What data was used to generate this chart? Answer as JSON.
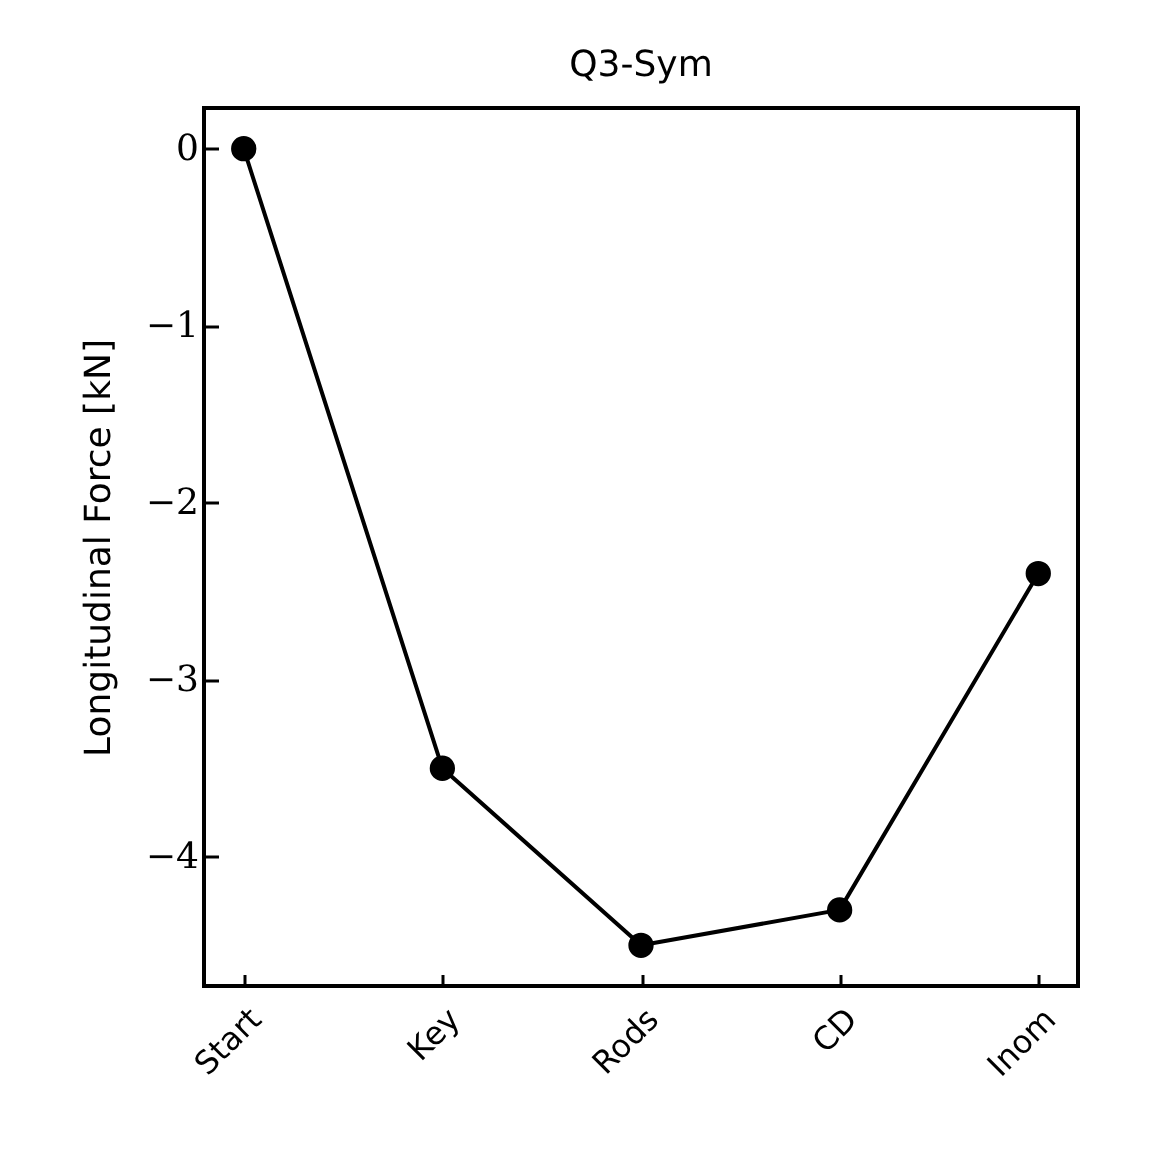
{
  "chart_data": {
    "type": "line",
    "title": "Q3-Sym",
    "ylabel": "Longitudinal Force [kN]",
    "categories": [
      "Start",
      "Key",
      "Rods",
      "CD",
      "Inom"
    ],
    "series": [
      {
        "color": "#000000",
        "values": [
          0,
          -3.5,
          -4.5,
          -4.3,
          -2.4
        ]
      }
    ],
    "ylim": [
      -4.73,
      0.23
    ],
    "yticks": [
      -4,
      -3,
      -2,
      -1,
      0
    ],
    "grid": false,
    "legend": false,
    "marker": "circle",
    "line_style": "solid"
  }
}
